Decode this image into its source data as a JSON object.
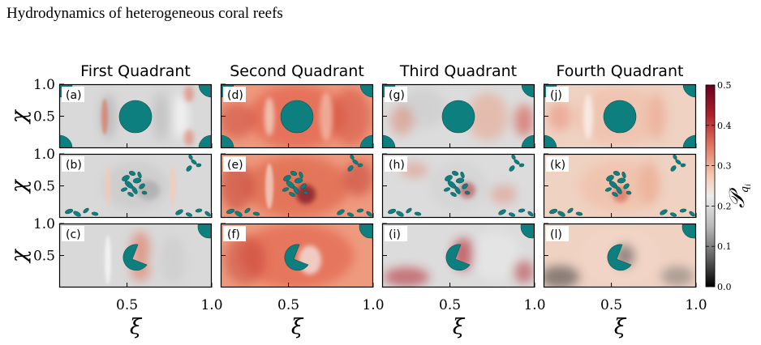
{
  "figure_title": "Hydrodynamics of heterogeneous coral reefs",
  "columns": [
    "First Quadrant",
    "Second Quadrant",
    "Third Quadrant",
    "Fourth Quadrant"
  ],
  "panel_labels": [
    [
      "(a)",
      "(d)",
      "(g)",
      "(j)"
    ],
    [
      "(b)",
      "(e)",
      "(h)",
      "(k)"
    ],
    [
      "(c)",
      "(f)",
      "(i)",
      "(l)"
    ]
  ],
  "axes": {
    "xlabel": "ξ",
    "ylabel": "χ",
    "x_ticks": [
      "0.5",
      "1.0"
    ],
    "y_ticks": [
      "1.0",
      "0.5"
    ]
  },
  "colorbar": {
    "label": "𝒫",
    "label_sub": "q",
    "label_subsub": "i",
    "ticks": [
      "0.5",
      "0.4",
      "0.3",
      "0.2",
      "0.1",
      "0.0"
    ],
    "range": [
      0.0,
      0.5
    ],
    "colors": [
      "#000000",
      "#5e5e5e",
      "#b9b9b9",
      "#ececec",
      "#f6c9b4",
      "#e07760",
      "#b1202c",
      "#67001f"
    ]
  },
  "colors": {
    "coral": "#0e7f7f",
    "coral_edge": "#0a4f4f"
  },
  "chart_data": {
    "type": "heatmap",
    "title": "Hydrodynamics of heterogeneous coral reefs",
    "xlabel": "ξ",
    "ylabel": "χ",
    "xlim": [
      0.1,
      1.0
    ],
    "ylim": [
      0.0,
      1.0
    ],
    "color_range": [
      0.0,
      0.5
    ],
    "columns": [
      "First Quadrant",
      "Second Quadrant",
      "Third Quadrant",
      "Fourth Quadrant"
    ],
    "rows": 3
  }
}
